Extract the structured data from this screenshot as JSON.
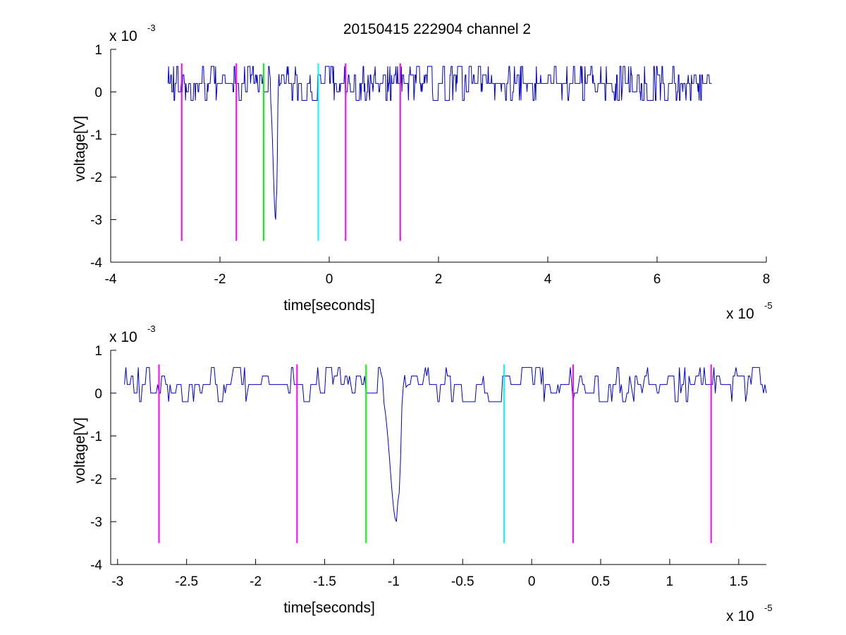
{
  "figure": {
    "title": "20150415 222904 channel 2"
  },
  "chart_data": [
    {
      "type": "line",
      "title": "20150415 222904 channel 2",
      "xlabel": "time[seconds]",
      "ylabel": "voltage[V]",
      "x_exponent": "x 10",
      "x_exponent_power": "-5",
      "y_exponent": "x 10",
      "y_exponent_power": "-3",
      "xlim": [
        -4,
        8
      ],
      "ylim": [
        -4,
        1
      ],
      "x_ticks": [
        "-4",
        "-2",
        "0",
        "2",
        "4",
        "6",
        "8"
      ],
      "x_tick_values": [
        -4,
        -2,
        0,
        2,
        4,
        6,
        8
      ],
      "y_ticks": [
        "1",
        "0",
        "-1",
        "-2",
        "-3",
        "-4"
      ],
      "y_tick_values": [
        1,
        0,
        -1,
        -2,
        -3,
        -4
      ],
      "grid": false,
      "signal": {
        "color": "#0000cc",
        "x_start": -2.95,
        "x_end": 7.0,
        "baseline": 0.0002,
        "spike_center": -0.98,
        "spike_min": -0.0032
      },
      "markers": [
        {
          "x": -2.7,
          "y_top": 0.00067,
          "y_bottom": -0.0035,
          "color": "#ff00ff"
        },
        {
          "x": -1.7,
          "y_top": 0.00067,
          "y_bottom": -0.0035,
          "color": "#ff00ff"
        },
        {
          "x": -1.2,
          "y_top": 0.00067,
          "y_bottom": -0.0035,
          "color": "#00ff00"
        },
        {
          "x": -0.2,
          "y_top": 0.00067,
          "y_bottom": -0.0035,
          "color": "#00ffff"
        },
        {
          "x": 0.3,
          "y_top": 0.00067,
          "y_bottom": -0.0035,
          "color": "#ff00ff"
        },
        {
          "x": 1.3,
          "y_top": 0.00067,
          "y_bottom": -0.0035,
          "color": "#ff00ff"
        }
      ]
    },
    {
      "type": "line",
      "title": "",
      "xlabel": "time[seconds]",
      "ylabel": "voltage[V]",
      "x_exponent": "x 10",
      "x_exponent_power": "-5",
      "y_exponent": "x 10",
      "y_exponent_power": "-3",
      "xlim": [
        -3.05,
        1.7
      ],
      "ylim": [
        -4,
        1
      ],
      "x_ticks": [
        "-3",
        "-2.5",
        "-2",
        "-1.5",
        "-1",
        "-0.5",
        "0",
        "0.5",
        "1",
        "1.5"
      ],
      "x_tick_values": [
        -3,
        -2.5,
        -2,
        -1.5,
        -1,
        -0.5,
        0,
        0.5,
        1,
        1.5
      ],
      "y_ticks": [
        "1",
        "0",
        "-1",
        "-2",
        "-3",
        "-4"
      ],
      "y_tick_values": [
        1,
        0,
        -1,
        -2,
        -3,
        -4
      ],
      "grid": false,
      "signal": {
        "color": "#0000cc",
        "x_start": -2.95,
        "x_end": 1.7,
        "baseline": 0.0002,
        "spike_center": -0.98,
        "spike_min": -0.0032
      },
      "markers": [
        {
          "x": -2.7,
          "y_top": 0.00067,
          "y_bottom": -0.0035,
          "color": "#ff00ff"
        },
        {
          "x": -1.7,
          "y_top": 0.00067,
          "y_bottom": -0.0035,
          "color": "#ff00ff"
        },
        {
          "x": -1.2,
          "y_top": 0.00067,
          "y_bottom": -0.0035,
          "color": "#00ff00"
        },
        {
          "x": -0.2,
          "y_top": 0.00067,
          "y_bottom": -0.0035,
          "color": "#00ffff"
        },
        {
          "x": 0.3,
          "y_top": 0.00067,
          "y_bottom": -0.0035,
          "color": "#ff00ff"
        },
        {
          "x": 1.3,
          "y_top": 0.00067,
          "y_bottom": -0.0035,
          "color": "#ff00ff"
        }
      ]
    }
  ]
}
